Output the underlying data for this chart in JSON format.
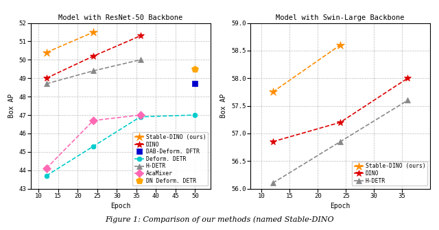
{
  "left": {
    "title": "Model with ResNet-50 Backbone",
    "xlabel": "Epoch",
    "ylabel": "Box AP",
    "ylim": [
      43,
      52
    ],
    "yticks": [
      43,
      44,
      45,
      46,
      47,
      48,
      49,
      50,
      51,
      52
    ],
    "xlim": [
      8,
      54
    ],
    "xticks": [
      10,
      15,
      20,
      25,
      30,
      35,
      40,
      45,
      50
    ],
    "series": {
      "Stable-DINO (ours)": {
        "x": [
          12,
          24
        ],
        "y": [
          50.4,
          51.5
        ],
        "color": "#FF8C00",
        "marker": "*",
        "linestyle": "--",
        "markersize": 9,
        "linewidth": 1.2,
        "zorder": 5
      },
      "DINO": {
        "x": [
          12,
          24,
          36
        ],
        "y": [
          49.0,
          50.2,
          51.3
        ],
        "color": "#DD0000",
        "marker": "*",
        "linestyle": "--",
        "markersize": 7,
        "linewidth": 1.2,
        "zorder": 4
      },
      "DAB-Deform. DFTR": {
        "x": [
          50
        ],
        "y": [
          48.7
        ],
        "color": "#0000CC",
        "marker": "s",
        "linestyle": "none",
        "markersize": 6,
        "linewidth": 0,
        "zorder": 3
      },
      "Deform. DETR": {
        "x": [
          12,
          24,
          36,
          50
        ],
        "y": [
          43.7,
          45.3,
          46.9,
          47.0
        ],
        "color": "#00CCCC",
        "marker": "o",
        "linestyle": "--",
        "markersize": 5,
        "linewidth": 1.2,
        "zorder": 2
      },
      "H-DETR": {
        "x": [
          12,
          24,
          36
        ],
        "y": [
          48.7,
          49.4,
          50.0
        ],
        "color": "#888888",
        "marker": "^",
        "linestyle": "--",
        "markersize": 6,
        "linewidth": 1.2,
        "zorder": 2
      },
      "AcaMixer": {
        "x": [
          12,
          24,
          36
        ],
        "y": [
          44.1,
          46.7,
          47.0
        ],
        "color": "#FF69B4",
        "marker": "D",
        "linestyle": "--",
        "markersize": 6,
        "linewidth": 1.2,
        "zorder": 2
      },
      "DN Deform. DETR": {
        "x": [
          50
        ],
        "y": [
          49.5
        ],
        "color": "#FFA500",
        "marker": "p",
        "linestyle": "none",
        "markersize": 7,
        "linewidth": 0,
        "zorder": 3
      }
    },
    "legend_order": [
      "Stable-DINO (ours)",
      "DINO",
      "DAB-Deform. DFTR",
      "Deform. DETR",
      "H-DETR",
      "AcaMixer",
      "DN Deform. DETR"
    ]
  },
  "right": {
    "title": "Model with Swin-Large Backbone",
    "xlabel": "Epoch",
    "ylabel": "Box AP",
    "ylim": [
      56.0,
      59.0
    ],
    "yticks": [
      56.0,
      56.5,
      57.0,
      57.5,
      58.0,
      58.5,
      59.0
    ],
    "xlim": [
      8,
      40
    ],
    "xticks": [
      10,
      15,
      20,
      25,
      30,
      35
    ],
    "series": {
      "Stable-DINO (ours)": {
        "x": [
          12,
          24
        ],
        "y": [
          57.75,
          58.6
        ],
        "color": "#FF8C00",
        "marker": "*",
        "linestyle": "--",
        "markersize": 9,
        "linewidth": 1.2,
        "zorder": 5
      },
      "DINO": {
        "x": [
          12,
          24,
          36
        ],
        "y": [
          56.85,
          57.2,
          58.0
        ],
        "color": "#DD0000",
        "marker": "*",
        "linestyle": "--",
        "markersize": 7,
        "linewidth": 1.2,
        "zorder": 4
      },
      "H-DETR": {
        "x": [
          12,
          24,
          36
        ],
        "y": [
          56.1,
          56.85,
          57.6
        ],
        "color": "#888888",
        "marker": "^",
        "linestyle": "--",
        "markersize": 6,
        "linewidth": 1.2,
        "zorder": 2
      }
    },
    "legend_order": [
      "Stable-DINO (ours)",
      "DINO",
      "H-DETR"
    ]
  },
  "figure_bg": "#FFFFFF",
  "axes_bg": "#FFFFFF",
  "grid_color": "#BBBBBB",
  "grid_linestyle": "--",
  "grid_linewidth": 0.5,
  "caption": "Figure 1: Comparison of our methods (named Stable-DINO",
  "title_fontsize": 7.5,
  "label_fontsize": 7,
  "tick_fontsize": 6.5,
  "legend_fontsize": 5.8
}
